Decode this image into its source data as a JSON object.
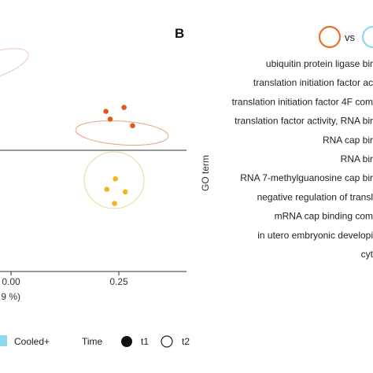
{
  "panel_b": {
    "letter": "B",
    "vs_label": "vs",
    "go_axis_title": "GO term",
    "go_terms": [
      "ubiquitin protein ligase bir",
      "translation initiation factor ac",
      "translation initiation factor 4F com",
      "translation factor activity, RNA bir",
      "RNA cap bir",
      "RNA bir",
      "RNA 7-methylguanosine cap bir",
      "negative regulation of transl",
      "mRNA cap binding com",
      "in utero embryonic developi",
      "cyt"
    ],
    "colors": {
      "orange_ring": "#e8742c",
      "cyan_ring": "#8fd8ee"
    }
  },
  "legend": {
    "cooled_label": "Cooled+",
    "cooled_color": "#8fd8ee",
    "time_title": "Time",
    "t1_label": "t1",
    "t2_label": "t2"
  },
  "chart_data": {
    "type": "scatter",
    "x_axis": {
      "label_fragment": ".9 %)",
      "ticks": [
        0.0,
        0.25
      ],
      "tick_labels": [
        "0.00",
        "0.25"
      ],
      "xlim": [
        -0.11,
        0.4
      ]
    },
    "y_axis": {
      "label": "",
      "zero_line": true
    },
    "series": [
      {
        "color": "#e25a1c",
        "points": [
          {
            "x": 0.22,
            "y": 0.15
          },
          {
            "x": 0.262,
            "y": 0.165
          },
          {
            "x": 0.23,
            "y": 0.12
          },
          {
            "x": 0.282,
            "y": 0.095
          }
        ],
        "ellipse_color": "#e8a48a"
      },
      {
        "color": "#f2b51c",
        "points": [
          {
            "x": 0.242,
            "y": -0.11
          },
          {
            "x": 0.222,
            "y": -0.15
          },
          {
            "x": 0.265,
            "y": -0.16
          },
          {
            "x": 0.24,
            "y": -0.205
          }
        ],
        "ellipse_color": "#ecd79a"
      },
      {
        "color": "#e8a48a",
        "points": [],
        "ellipse_color": "#e8c9b8",
        "note_partial": true
      }
    ]
  }
}
